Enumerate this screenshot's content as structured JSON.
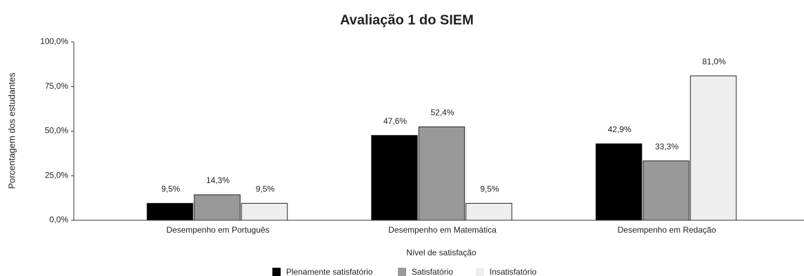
{
  "chart_data": {
    "type": "bar",
    "title": "Avaliação 1 do SIEM",
    "x_label": "Nível de satisfação",
    "y_label": "Porcentagem dos estudantes",
    "categories": [
      "Desempenho em Português",
      "Desempenho em Matemática",
      "Desempenho em Redação"
    ],
    "series": [
      {
        "name": "Plenamente satisfatório",
        "color": "#000000",
        "values": [
          9.5,
          47.6,
          42.9
        ],
        "value_labels": [
          "9,5%",
          "47,6%",
          "42,9%"
        ]
      },
      {
        "name": "Satisfatório",
        "color": "#999999",
        "values": [
          14.3,
          52.4,
          33.3
        ],
        "value_labels": [
          "14,3%",
          "52,4%",
          "33,3%"
        ]
      },
      {
        "name": "Insatisfatório",
        "color": "#eeeeee",
        "values": [
          9.5,
          9.5,
          81.0
        ],
        "value_labels": [
          "9,5%",
          "9,5%",
          "81,0%"
        ]
      }
    ],
    "ylim": [
      0,
      100
    ],
    "yticks": [
      {
        "value": 0,
        "label": "0,0%"
      },
      {
        "value": 25,
        "label": "25,0%"
      },
      {
        "value": 50,
        "label": "50,0%"
      },
      {
        "value": 75,
        "label": "75,0%"
      },
      {
        "value": 100,
        "label": "100,0%"
      }
    ],
    "legend": "bottom"
  }
}
